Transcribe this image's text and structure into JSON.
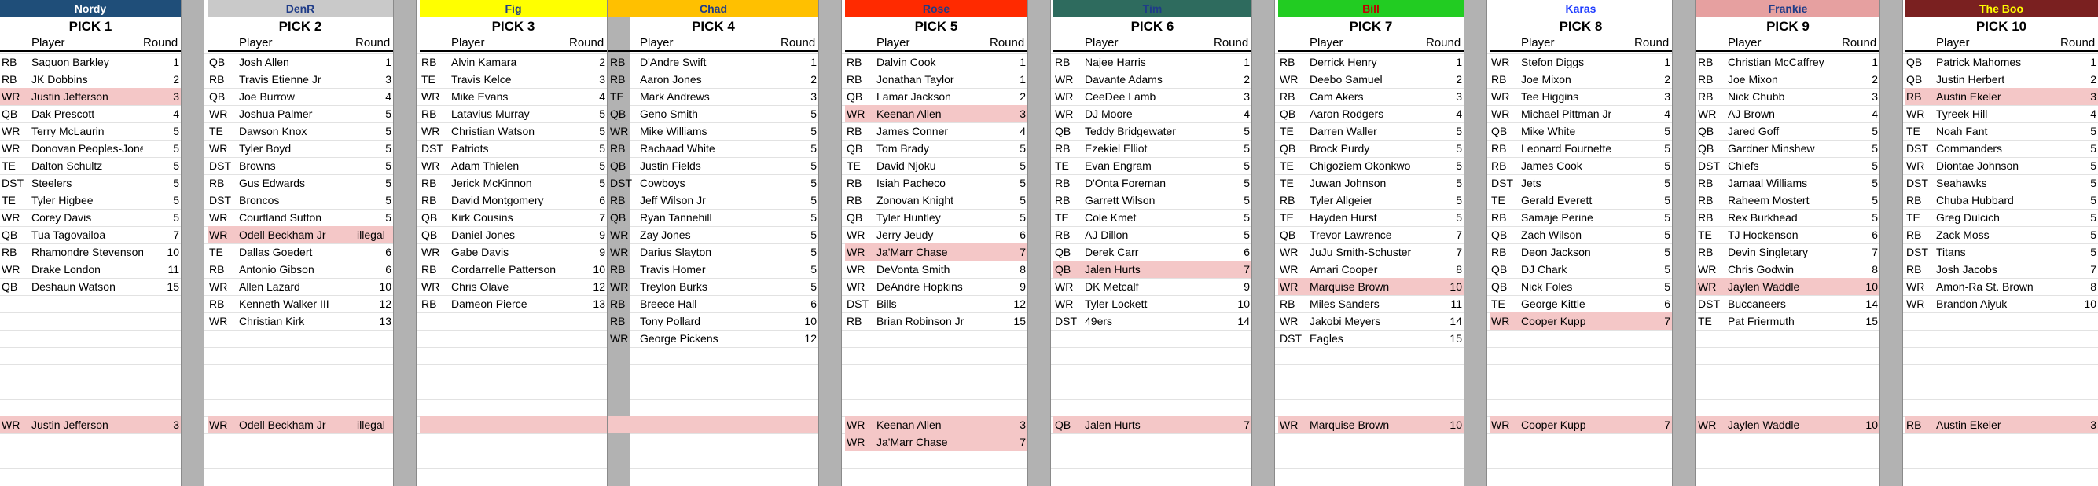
{
  "columns": [
    {
      "owner": "Nordy",
      "owner_bg": "#1f4e79",
      "owner_fg": "#ffffff",
      "pick": "PICK 1",
      "rows": [
        [
          "RB",
          "Saquon Barkley",
          "1",
          false
        ],
        [
          "RB",
          "JK Dobbins",
          "2",
          false
        ],
        [
          "WR",
          "Justin Jefferson",
          "3",
          true
        ],
        [
          "QB",
          "Dak Prescott",
          "4",
          false
        ],
        [
          "WR",
          "Terry McLaurin",
          "5",
          false
        ],
        [
          "WR",
          "Donovan Peoples-Jones",
          "5",
          false
        ],
        [
          "TE",
          "Dalton Schultz",
          "5",
          false
        ],
        [
          "DST",
          "Steelers",
          "5",
          false
        ],
        [
          "TE",
          "Tyler Higbee",
          "5",
          false
        ],
        [
          "WR",
          "Corey Davis",
          "5",
          false
        ],
        [
          "QB",
          "Tua Tagovailoa",
          "7",
          false
        ],
        [
          "RB",
          "Rhamondre Stevenson",
          "10",
          false
        ],
        [
          "WR",
          "Drake London",
          "11",
          false
        ],
        [
          "QB",
          "Deshaun Watson",
          "15",
          false
        ]
      ],
      "keepers": [
        [
          "WR",
          "Justin Jefferson",
          "3"
        ]
      ]
    },
    {
      "owner": "DenR",
      "owner_bg": "#c9c9c9",
      "owner_fg": "#1f3c88",
      "pick": "PICK 2",
      "rows": [
        [
          "QB",
          "Josh Allen",
          "1",
          false
        ],
        [
          "RB",
          "Travis Etienne Jr",
          "3",
          false
        ],
        [
          "QB",
          "Joe Burrow",
          "4",
          false
        ],
        [
          "WR",
          "Joshua Palmer",
          "5",
          false
        ],
        [
          "TE",
          "Dawson Knox",
          "5",
          false
        ],
        [
          "WR",
          "Tyler Boyd",
          "5",
          false
        ],
        [
          "DST",
          "Browns",
          "5",
          false
        ],
        [
          "RB",
          "Gus Edwards",
          "5",
          false
        ],
        [
          "DST",
          "Broncos",
          "5",
          false
        ],
        [
          "WR",
          "Courtland Sutton",
          "5",
          false
        ],
        [
          "WR",
          "Odell Beckham Jr",
          "illegal",
          true
        ],
        [
          "TE",
          "Dallas Goedert",
          "6",
          false
        ],
        [
          "RB",
          "Antonio Gibson",
          "6",
          false
        ],
        [
          "WR",
          "Allen Lazard",
          "10",
          false
        ],
        [
          "RB",
          "Kenneth Walker III",
          "12",
          false
        ],
        [
          "WR",
          "Christian Kirk",
          "13",
          false
        ]
      ],
      "keepers": [
        [
          "WR",
          "Odell Beckham Jr",
          "illegal"
        ]
      ]
    },
    {
      "owner": "Fig",
      "owner_bg": "#ffff00",
      "owner_fg": "#1f3c88",
      "pick": "PICK 3",
      "rows": [
        [
          "RB",
          "Alvin Kamara",
          "2",
          false
        ],
        [
          "TE",
          "Travis Kelce",
          "3",
          false
        ],
        [
          "WR",
          "Mike Evans",
          "4",
          false
        ],
        [
          "RB",
          "Latavius Murray",
          "5",
          false
        ],
        [
          "WR",
          "Christian Watson",
          "5",
          false
        ],
        [
          "DST",
          "Patriots",
          "5",
          false
        ],
        [
          "WR",
          "Adam Thielen",
          "5",
          false
        ],
        [
          "RB",
          "Jerick McKinnon",
          "5",
          false
        ],
        [
          "RB",
          "David Montgomery",
          "6",
          false
        ],
        [
          "QB",
          "Kirk Cousins",
          "7",
          false
        ],
        [
          "QB",
          "Daniel Jones",
          "9",
          false
        ],
        [
          "WR",
          "Gabe Davis",
          "9",
          false
        ],
        [
          "RB",
          "Cordarrelle Patterson",
          "10",
          false
        ],
        [
          "WR",
          "Chris Olave",
          "12",
          false
        ],
        [
          "RB",
          "Dameon Pierce",
          "13",
          false
        ]
      ],
      "keepers": [
        [
          "",
          "",
          ""
        ]
      ]
    },
    {
      "owner": "Chad",
      "owner_bg": "#ffc000",
      "owner_fg": "#1f3c88",
      "pick": "PICK 4",
      "rows": [
        [
          "RB",
          "D'Andre Swift",
          "1",
          false
        ],
        [
          "RB",
          "Aaron Jones",
          "2",
          false
        ],
        [
          "TE",
          "Mark Andrews",
          "3",
          false
        ],
        [
          "QB",
          "Geno Smith",
          "5",
          false
        ],
        [
          "WR",
          "Mike Williams",
          "5",
          false
        ],
        [
          "RB",
          "Rachaad White",
          "5",
          false
        ],
        [
          "QB",
          "Justin Fields",
          "5",
          false
        ],
        [
          "DST",
          "Cowboys",
          "5",
          false
        ],
        [
          "RB",
          "Jeff Wilson Jr",
          "5",
          false
        ],
        [
          "QB",
          "Ryan Tannehill",
          "5",
          false
        ],
        [
          "WR",
          "Zay Jones",
          "5",
          false
        ],
        [
          "WR",
          "Darius Slayton",
          "5",
          false
        ],
        [
          "RB",
          "Travis Homer",
          "5",
          false
        ],
        [
          "WR",
          "Treylon Burks",
          "5",
          false
        ],
        [
          "RB",
          "Breece Hall",
          "6",
          false
        ],
        [
          "RB",
          "Tony Pollard",
          "10",
          false
        ],
        [
          "WR",
          "George Pickens",
          "12",
          false
        ]
      ],
      "keepers": [
        [
          "",
          "",
          ""
        ]
      ]
    },
    {
      "owner": "Rose",
      "owner_bg": "#ff2a00",
      "owner_fg": "#1f3c88",
      "pick": "PICK 5",
      "rows": [
        [
          "RB",
          "Dalvin Cook",
          "1",
          false
        ],
        [
          "RB",
          "Jonathan Taylor",
          "1",
          false
        ],
        [
          "QB",
          "Lamar Jackson",
          "2",
          false
        ],
        [
          "WR",
          "Keenan Allen",
          "3",
          true
        ],
        [
          "RB",
          "James Conner",
          "4",
          false
        ],
        [
          "QB",
          "Tom Brady",
          "5",
          false
        ],
        [
          "TE",
          "David Njoku",
          "5",
          false
        ],
        [
          "RB",
          "Isiah Pacheco",
          "5",
          false
        ],
        [
          "RB",
          "Zonovan Knight",
          "5",
          false
        ],
        [
          "QB",
          "Tyler Huntley",
          "5",
          false
        ],
        [
          "WR",
          "Jerry Jeudy",
          "6",
          false
        ],
        [
          "WR",
          "Ja'Marr Chase",
          "7",
          true
        ],
        [
          "WR",
          "DeVonta Smith",
          "8",
          false
        ],
        [
          "WR",
          "DeAndre Hopkins",
          "9",
          false
        ],
        [
          "DST",
          "Bills",
          "12",
          false
        ],
        [
          "RB",
          "Brian Robinson Jr",
          "15",
          false
        ]
      ],
      "keepers": [
        [
          "WR",
          "Keenan Allen",
          "3"
        ],
        [
          "WR",
          "Ja'Marr Chase",
          "7"
        ]
      ]
    },
    {
      "owner": "Tim",
      "owner_bg": "#2e6b5e",
      "owner_fg": "#1f3c88",
      "pick": "PICK 6",
      "rows": [
        [
          "RB",
          "Najee Harris",
          "1",
          false
        ],
        [
          "WR",
          "Davante Adams",
          "2",
          false
        ],
        [
          "WR",
          "CeeDee Lamb",
          "3",
          false
        ],
        [
          "WR",
          "DJ Moore",
          "4",
          false
        ],
        [
          "QB",
          "Teddy Bridgewater",
          "5",
          false
        ],
        [
          "RB",
          "Ezekiel Elliot",
          "5",
          false
        ],
        [
          "TE",
          "Evan Engram",
          "5",
          false
        ],
        [
          "RB",
          "D'Onta Foreman",
          "5",
          false
        ],
        [
          "RB",
          "Garrett Wilson",
          "5",
          false
        ],
        [
          "TE",
          "Cole Kmet",
          "5",
          false
        ],
        [
          "RB",
          "AJ Dillon",
          "5",
          false
        ],
        [
          "QB",
          "Derek Carr",
          "6",
          false
        ],
        [
          "QB",
          "Jalen Hurts",
          "7",
          true
        ],
        [
          "WR",
          "DK Metcalf",
          "9",
          false
        ],
        [
          "WR",
          "Tyler Lockett",
          "10",
          false
        ],
        [
          "DST",
          "49ers",
          "14",
          false
        ]
      ],
      "keepers": [
        [
          "QB",
          "Jalen Hurts",
          "7"
        ]
      ]
    },
    {
      "owner": "Bill",
      "owner_bg": "#22cc22",
      "owner_fg": "#c00000",
      "pick": "PICK 7",
      "rows": [
        [
          "RB",
          "Derrick Henry",
          "1",
          false
        ],
        [
          "WR",
          "Deebo Samuel",
          "2",
          false
        ],
        [
          "RB",
          "Cam Akers",
          "3",
          false
        ],
        [
          "QB",
          "Aaron Rodgers",
          "4",
          false
        ],
        [
          "TE",
          "Darren Waller",
          "5",
          false
        ],
        [
          "QB",
          "Brock Purdy",
          "5",
          false
        ],
        [
          "TE",
          "Chigoziem Okonkwo",
          "5",
          false
        ],
        [
          "TE",
          "Juwan Johnson",
          "5",
          false
        ],
        [
          "RB",
          "Tyler Allgeier",
          "5",
          false
        ],
        [
          "TE",
          "Hayden Hurst",
          "5",
          false
        ],
        [
          "QB",
          "Trevor Lawrence",
          "7",
          false
        ],
        [
          "WR",
          "JuJu Smith-Schuster",
          "7",
          false
        ],
        [
          "WR",
          "Amari Cooper",
          "8",
          false
        ],
        [
          "WR",
          "Marquise Brown",
          "10",
          true
        ],
        [
          "RB",
          "Miles Sanders",
          "11",
          false
        ],
        [
          "WR",
          "Jakobi Meyers",
          "14",
          false
        ],
        [
          "DST",
          "Eagles",
          "15",
          false
        ]
      ],
      "keepers": [
        [
          "WR",
          "Marquise Brown",
          "10"
        ]
      ]
    },
    {
      "owner": "Karas",
      "owner_bg": "#ffffff",
      "owner_fg": "#1f3cff",
      "pick": "PICK 8",
      "rows": [
        [
          "WR",
          "Stefon Diggs",
          "1",
          false
        ],
        [
          "RB",
          "Joe Mixon",
          "2",
          false
        ],
        [
          "WR",
          "Tee Higgins",
          "3",
          false
        ],
        [
          "WR",
          "Michael Pittman Jr",
          "4",
          false
        ],
        [
          "QB",
          "Mike White",
          "5",
          false
        ],
        [
          "RB",
          "Leonard Fournette",
          "5",
          false
        ],
        [
          "RB",
          "James Cook",
          "5",
          false
        ],
        [
          "DST",
          "Jets",
          "5",
          false
        ],
        [
          "TE",
          "Gerald Everett",
          "5",
          false
        ],
        [
          "RB",
          "Samaje Perine",
          "5",
          false
        ],
        [
          "QB",
          "Zach Wilson",
          "5",
          false
        ],
        [
          "RB",
          "Deon Jackson",
          "5",
          false
        ],
        [
          "QB",
          "DJ Chark",
          "5",
          false
        ],
        [
          "QB",
          "Nick Foles",
          "5",
          false
        ],
        [
          "TE",
          "George Kittle",
          "6",
          false
        ],
        [
          "WR",
          "Cooper Kupp",
          "7",
          true
        ]
      ],
      "keepers": [
        [
          "WR",
          "Cooper Kupp",
          "7"
        ]
      ]
    },
    {
      "owner": "Frankie",
      "owner_bg": "#e6a0a0",
      "owner_fg": "#1f3c88",
      "pick": "PICK 9",
      "rows": [
        [
          "RB",
          "Christian McCaffrey",
          "1",
          false
        ],
        [
          "RB",
          "Joe Mixon",
          "2",
          false
        ],
        [
          "RB",
          "Nick Chubb",
          "3",
          false
        ],
        [
          "WR",
          "AJ Brown",
          "4",
          false
        ],
        [
          "QB",
          "Jared Goff",
          "5",
          false
        ],
        [
          "QB",
          "Gardner Minshew",
          "5",
          false
        ],
        [
          "DST",
          "Chiefs",
          "5",
          false
        ],
        [
          "RB",
          "Jamaal Williams",
          "5",
          false
        ],
        [
          "RB",
          "Raheem Mostert",
          "5",
          false
        ],
        [
          "RB",
          "Rex Burkhead",
          "5",
          false
        ],
        [
          "TE",
          "TJ Hockenson",
          "6",
          false
        ],
        [
          "RB",
          "Devin Singletary",
          "7",
          false
        ],
        [
          "WR",
          "Chris Godwin",
          "8",
          false
        ],
        [
          "WR",
          "Jaylen Waddle",
          "10",
          true
        ],
        [
          "DST",
          "Buccaneers",
          "14",
          false
        ],
        [
          "TE",
          "Pat Friermuth",
          "15",
          false
        ]
      ],
      "keepers": [
        [
          "WR",
          "Jaylen Waddle",
          "10"
        ]
      ]
    },
    {
      "owner": "The Boo",
      "owner_bg": "#7a2020",
      "owner_fg": "#ffff00",
      "pick": "PICK 10",
      "rows": [
        [
          "QB",
          "Patrick Mahomes",
          "1",
          false
        ],
        [
          "QB",
          "Justin Herbert",
          "2",
          false
        ],
        [
          "RB",
          "Austin Ekeler",
          "3",
          true
        ],
        [
          "WR",
          "Tyreek Hill",
          "4",
          false
        ],
        [
          "TE",
          "Noah Fant",
          "5",
          false
        ],
        [
          "DST",
          "Commanders",
          "5",
          false
        ],
        [
          "WR",
          "Diontae Johnson",
          "5",
          false
        ],
        [
          "DST",
          "Seahawks",
          "5",
          false
        ],
        [
          "RB",
          "Chuba Hubbard",
          "5",
          false
        ],
        [
          "TE",
          "Greg Dulcich",
          "5",
          false
        ],
        [
          "RB",
          "Zack Moss",
          "5",
          false
        ],
        [
          "DST",
          "Titans",
          "5",
          false
        ],
        [
          "RB",
          "Josh Jacobs",
          "7",
          false
        ],
        [
          "WR",
          "Amon-Ra St. Brown",
          "8",
          false
        ],
        [
          "WR",
          "Brandon Aiyuk",
          "10",
          false
        ]
      ],
      "keepers": [
        [
          "RB",
          "Austin Ekeler",
          "3"
        ]
      ]
    }
  ],
  "header": {
    "player_label": "Player",
    "round_label": "Round"
  }
}
